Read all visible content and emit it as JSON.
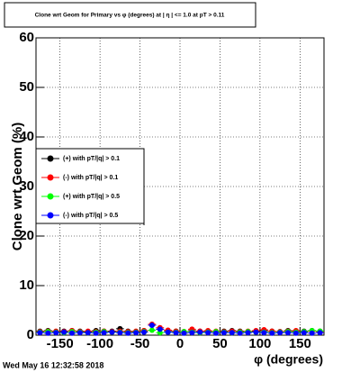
{
  "chart_data": {
    "type": "scatter",
    "title": "Clone wrt Geom for Primary vs φ (degrees) at | η | <= 1.0 at pT > 0.11",
    "x_label": "φ (degrees)",
    "y_label": "Clone wrt Geom (%)",
    "timestamp": "Wed May 16 12:32:58 2018",
    "x": [
      -175,
      -165,
      -155,
      -145,
      -135,
      -125,
      -115,
      -105,
      -95,
      -85,
      -75,
      -65,
      -55,
      -45,
      -35,
      -25,
      -15,
      -5,
      5,
      15,
      25,
      35,
      45,
      55,
      65,
      75,
      85,
      95,
      105,
      115,
      125,
      135,
      145,
      155,
      165,
      175
    ],
    "series": [
      {
        "name": "(+) with pT/|q| > 0.1",
        "color": "#000000",
        "values": [
          0.8,
          0.9,
          0.7,
          0.8,
          0.9,
          0.8,
          0.7,
          0.9,
          0.8,
          0.8,
          1.3,
          0.8,
          0.7,
          0.9,
          2.0,
          1.2,
          0.9,
          0.8,
          0.7,
          0.9,
          0.8,
          0.8,
          0.7,
          0.8,
          0.9,
          0.8,
          0.7,
          0.8,
          0.9,
          0.8,
          0.7,
          0.9,
          0.8,
          0.8,
          0.9,
          0.8
        ]
      },
      {
        "name": "(-) with pT/|q| > 0.1",
        "color": "#ff0000",
        "values": [
          0.7,
          0.8,
          0.8,
          0.7,
          0.9,
          0.7,
          0.8,
          0.7,
          0.8,
          0.7,
          0.8,
          0.7,
          0.8,
          0.9,
          2.2,
          1.5,
          1.0,
          0.8,
          0.7,
          1.2,
          0.8,
          0.9,
          0.8,
          0.7,
          0.8,
          0.7,
          0.8,
          0.9,
          1.1,
          0.8,
          0.7,
          0.8,
          0.9,
          0.7,
          0.8,
          0.7
        ]
      },
      {
        "name": "(+) with pT/|q| > 0.5",
        "color": "#00ff00",
        "values": [
          0.6,
          0.7,
          0.6,
          0.5,
          0.7,
          0.6,
          0.5,
          0.6,
          0.7,
          0.6,
          0.6,
          0.5,
          0.6,
          0.7,
          1.0,
          0.5,
          0.6,
          0.6,
          0.7,
          0.6,
          0.5,
          0.6,
          0.7,
          0.6,
          0.5,
          0.6,
          0.7,
          0.6,
          0.6,
          0.5,
          0.6,
          0.7,
          0.6,
          0.7,
          0.9,
          0.8
        ]
      },
      {
        "name": "(-) with pT/|q| > 0.5",
        "color": "#0000ff",
        "values": [
          0.5,
          0.4,
          0.5,
          0.6,
          0.4,
          0.5,
          0.5,
          0.4,
          0.5,
          0.6,
          0.5,
          0.4,
          0.5,
          0.6,
          2.0,
          1.2,
          0.6,
          0.5,
          0.4,
          0.5,
          0.6,
          0.5,
          0.4,
          0.5,
          0.5,
          0.4,
          0.5,
          0.6,
          0.5,
          0.4,
          0.5,
          0.5,
          0.4,
          0.5,
          0.4,
          0.5
        ]
      }
    ],
    "xlim": [
      -180,
      180
    ],
    "ylim": [
      0,
      60
    ],
    "xticks": [
      -150,
      -100,
      -50,
      0,
      50,
      100,
      150
    ],
    "yticks": [
      0,
      10,
      20,
      30,
      40,
      50,
      60
    ],
    "grid": true,
    "legend_position": "center-left"
  }
}
